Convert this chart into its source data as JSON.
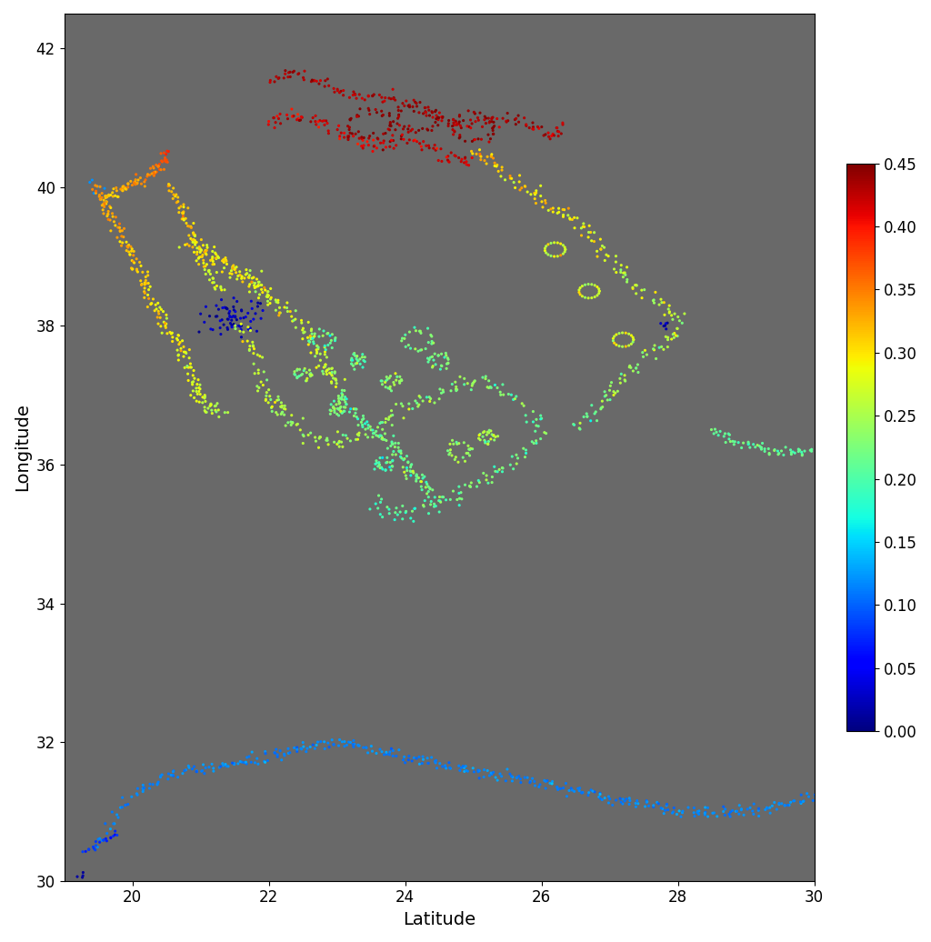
{
  "xlabel": "Latitude",
  "ylabel": "Longitude",
  "xlim": [
    19,
    30
  ],
  "ylim": [
    30,
    42.5
  ],
  "bg_color": "#696969",
  "cmap": "jet",
  "vmin": 0,
  "vmax": 0.45,
  "colorbar_ticks": [
    0,
    0.05,
    0.1,
    0.15,
    0.2,
    0.25,
    0.3,
    0.35,
    0.4,
    0.45
  ],
  "marker_size": 5
}
